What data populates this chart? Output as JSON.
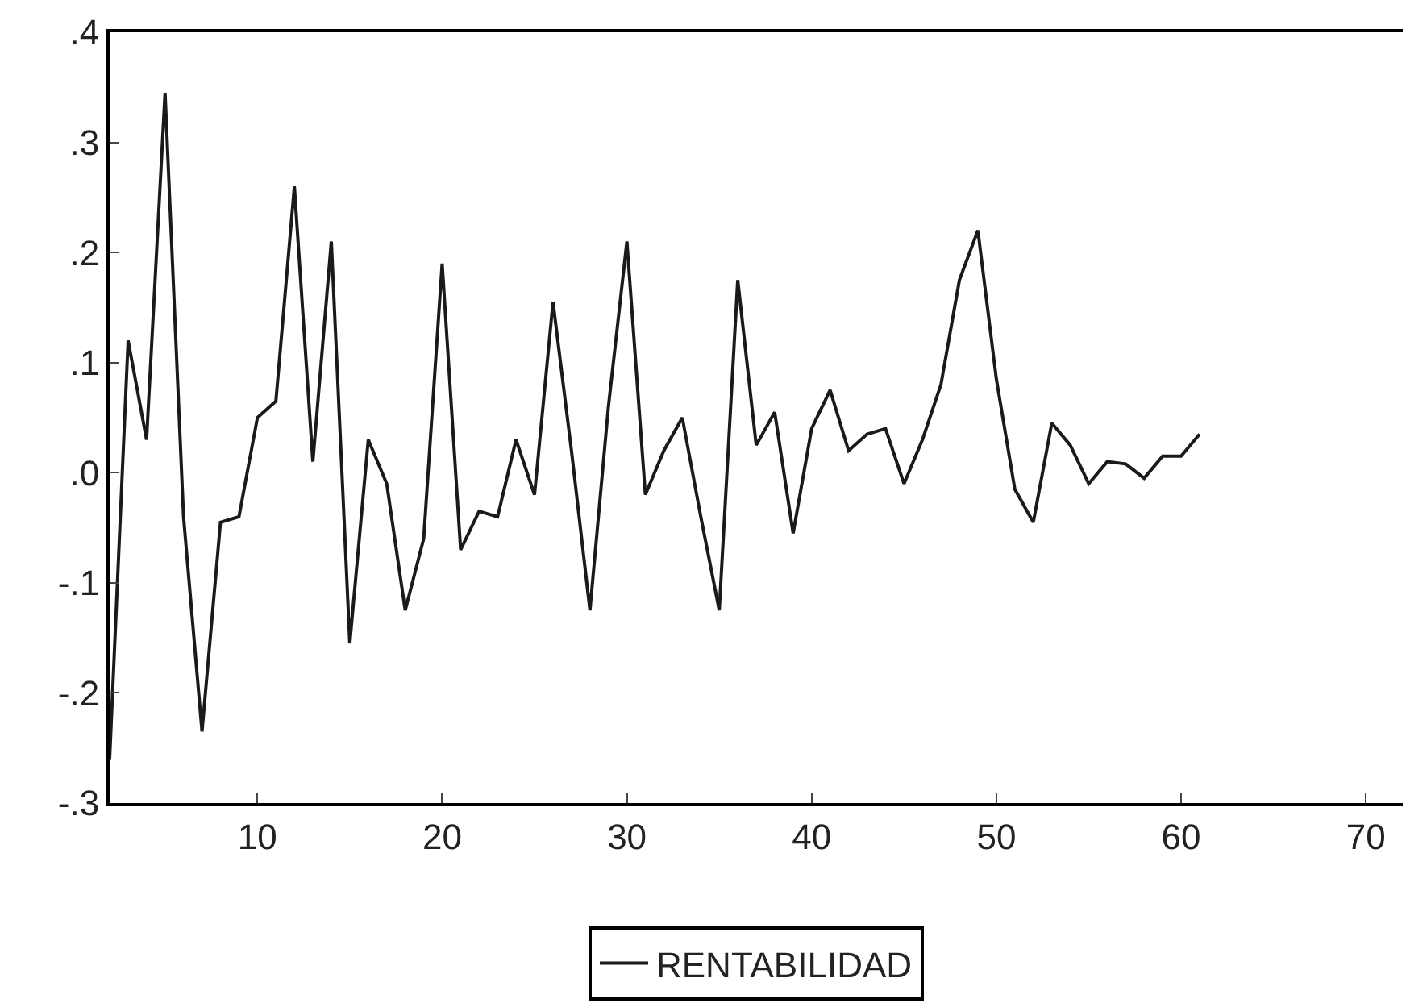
{
  "chart_data": {
    "type": "line",
    "x": [
      2,
      3,
      4,
      5,
      6,
      7,
      8,
      9,
      10,
      11,
      12,
      13,
      14,
      15,
      16,
      17,
      18,
      19,
      20,
      21,
      22,
      23,
      24,
      25,
      26,
      27,
      28,
      29,
      30,
      31,
      32,
      33,
      34,
      35,
      36,
      37,
      38,
      39,
      40,
      41,
      42,
      43,
      44,
      45,
      46,
      47,
      48,
      49,
      50,
      51,
      52,
      53,
      54,
      55,
      56,
      57,
      58,
      59,
      60,
      61
    ],
    "series": [
      {
        "name": "RENTABILIDAD",
        "color": "#1a1a1a",
        "values": [
          -0.26,
          0.12,
          0.03,
          0.345,
          -0.04,
          -0.235,
          -0.045,
          -0.04,
          0.05,
          0.065,
          0.26,
          0.01,
          0.21,
          -0.155,
          0.03,
          -0.01,
          -0.125,
          -0.06,
          0.19,
          -0.07,
          -0.035,
          -0.04,
          0.03,
          -0.02,
          0.155,
          0.02,
          -0.125,
          0.06,
          0.21,
          -0.02,
          0.02,
          0.05,
          -0.04,
          -0.125,
          0.175,
          0.025,
          0.055,
          -0.055,
          0.04,
          0.075,
          0.02,
          0.035,
          0.04,
          -0.01,
          0.03,
          0.08,
          0.175,
          0.22,
          0.085,
          -0.015,
          -0.045,
          0.045,
          0.025,
          -0.01,
          0.01,
          0.008,
          -0.005,
          0.015,
          0.015,
          0.035
        ]
      }
    ],
    "xlim": [
      2,
      72
    ],
    "xticks": [
      10,
      20,
      30,
      40,
      50,
      60,
      70
    ],
    "ylim": [
      -0.3,
      0.4
    ],
    "yticks": [
      {
        "value": -0.3,
        "label": "-.3"
      },
      {
        "value": -0.2,
        "label": "-.2"
      },
      {
        "value": -0.1,
        "label": "-.1"
      },
      {
        "value": 0,
        "label": ".0"
      },
      {
        "value": 0.1,
        "label": ".1"
      },
      {
        "value": 0.2,
        "label": ".2"
      },
      {
        "value": 0.3,
        "label": ".3"
      },
      {
        "value": 0.4,
        "label": ".4"
      }
    ],
    "legend": "bottom",
    "marker": "none",
    "line_style": "solid"
  }
}
